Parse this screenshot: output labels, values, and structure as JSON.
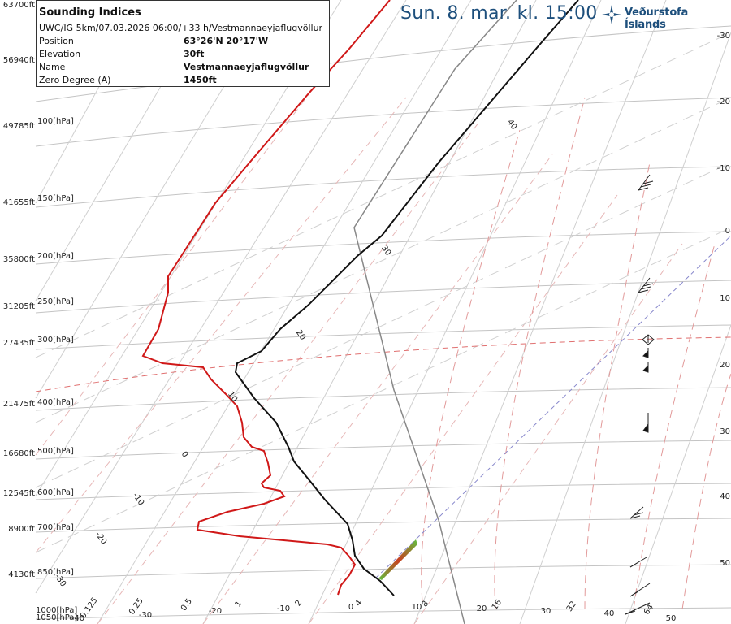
{
  "header": {
    "title": "Sun. 8. mar. kl. 15:00",
    "brand": "Veðurstofa Íslands"
  },
  "info_box": {
    "title": "Sounding Indices",
    "subtitle": "UWC/IG 5km/07.03.2026 06:00/+33 h/Vestmannaeyjaflugvöllur",
    "rows": [
      {
        "label": "Position",
        "value": "63°26'N 20°17'W"
      },
      {
        "label": "Elevation",
        "value": "30ft"
      },
      {
        "label": "Name",
        "value": "Vestmannaeyjaflugvöllur"
      },
      {
        "label": "Zero Degree (A)",
        "value": "1450ft"
      }
    ]
  },
  "colors": {
    "temperature": "#d01818",
    "dewpoint_parcel": "#111111",
    "moist_adiabat": "#888888",
    "isobar": "#bbbbbb",
    "isotherm": "#c8c8c8",
    "dry_adiabat": "#e0a0a0",
    "mixing_ratio": "#8888cc",
    "zero_isotherm": "#e07070",
    "title_blue": "#1d4f7c"
  },
  "chart_data": {
    "type": "line",
    "title": "",
    "left_axis_altitude_ft": [
      "63700ft",
      "56940ft",
      "49785ft",
      "41655ft",
      "35800ft",
      "31205ft",
      "27435ft",
      "21475ft",
      "16680ft",
      "12545ft",
      "8900ft",
      "4130ft"
    ],
    "left_axis_pressure_hpa": [
      "100[hPa]",
      "150[hPa]",
      "200[hPa]",
      "250[hPa]",
      "300[hPa]",
      "400[hPa]",
      "500[hPa]",
      "600[hPa]",
      "700[hPa]",
      "850[hPa]",
      "1000[hPa]",
      "1050[hPa]"
    ],
    "right_axis_labels": [
      "-30",
      "-20",
      "-10",
      "0",
      "10",
      "20",
      "30",
      "40",
      "50"
    ],
    "bottom_temperature_labels": [
      "-40",
      "-30",
      "-20",
      "-10",
      "0",
      "10",
      "20",
      "30",
      "40",
      "50"
    ],
    "bottom_mixing_ratio_labels": [
      "0.125",
      "0.25",
      "0.5",
      "1",
      "2",
      "4",
      "8",
      "16",
      "32",
      "64"
    ],
    "isotherm_labels": [
      "40",
      "30",
      "20",
      "10",
      "0",
      "-10",
      "-20",
      "-30"
    ],
    "series": []
  }
}
